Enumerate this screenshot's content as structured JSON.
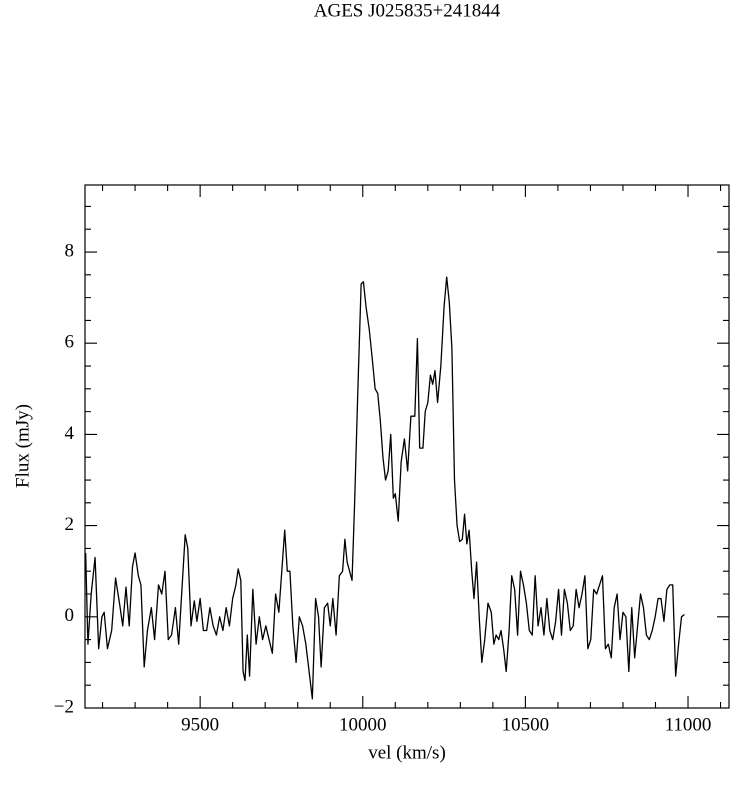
{
  "chart_data": {
    "type": "line",
    "title": "AGES J025835+241844",
    "xlabel": "vel (km/s)",
    "ylabel": "Flux (mJy)",
    "color": "#000000",
    "xlim": [
      9146,
      11126
    ],
    "ylim": [
      -2,
      9.47
    ],
    "xticks": [
      9500,
      10000,
      10500,
      11000
    ],
    "yticks": [
      {
        "value": -2,
        "label": "−2"
      },
      0,
      2,
      4,
      6,
      8
    ],
    "xminorticks": [
      9200,
      9300,
      9400,
      9600,
      9700,
      9800,
      9900,
      10100,
      10200,
      10300,
      10400,
      10600,
      10700,
      10800,
      10900,
      11100
    ],
    "yminorticks": [
      -1.5,
      -1,
      -0.5,
      0.5,
      1,
      1.5,
      2.5,
      3,
      3.5,
      4.5,
      5,
      5.5,
      6.5,
      7,
      7.5,
      8.5,
      9
    ],
    "x": [
      9148,
      9155,
      9165,
      9177,
      9188,
      9198,
      9205,
      9215,
      9228,
      9240,
      9252,
      9262,
      9272,
      9282,
      9292,
      9300,
      9310,
      9318,
      9328,
      9338,
      9350,
      9360,
      9372,
      9382,
      9392,
      9402,
      9412,
      9424,
      9434,
      9444,
      9454,
      9462,
      9472,
      9482,
      9490,
      9500,
      9510,
      9520,
      9530,
      9540,
      9550,
      9560,
      9570,
      9580,
      9590,
      9600,
      9610,
      9617,
      9625,
      9632,
      9638,
      9645,
      9652,
      9662,
      9672,
      9682,
      9692,
      9702,
      9712,
      9722,
      9732,
      9742,
      9752,
      9760,
      9768,
      9776,
      9785,
      9795,
      9805,
      9815,
      9825,
      9835,
      9845,
      9855,
      9864,
      9872,
      9882,
      9892,
      9900,
      9908,
      9918,
      9928,
      9938,
      9945,
      9952,
      9967,
      9975,
      9985,
      9995,
      10002,
      10010,
      10020,
      10030,
      10038,
      10046,
      10054,
      10062,
      10070,
      10078,
      10086,
      10094,
      10100,
      10109,
      10118,
      10128,
      10138,
      10148,
      10160,
      10168,
      10175,
      10185,
      10192,
      10200,
      10208,
      10215,
      10222,
      10230,
      10240,
      10250,
      10258,
      10266,
      10274,
      10282,
      10290,
      10298,
      10306,
      10313,
      10320,
      10327,
      10335,
      10342,
      10350,
      10358,
      10366,
      10375,
      10385,
      10395,
      10403,
      10410,
      10418,
      10425,
      10433,
      10441,
      10450,
      10458,
      10467,
      10476,
      10485,
      10494,
      10503,
      10512,
      10521,
      10530,
      10539,
      10548,
      10557,
      10566,
      10575,
      10584,
      10593,
      10602,
      10611,
      10620,
      10629,
      10638,
      10647,
      10656,
      10665,
      10674,
      10683,
      10692,
      10701,
      10710,
      10719,
      10728,
      10737,
      10746,
      10755,
      10764,
      10773,
      10782,
      10791,
      10800,
      10809,
      10818,
      10827,
      10836,
      10845,
      10854,
      10863,
      10872,
      10881,
      10890,
      10899,
      10908,
      10917,
      10926,
      10935,
      10944,
      10953,
      10962,
      10971,
      10980,
      10989
    ],
    "values": [
      1.4,
      -0.6,
      0.5,
      1.3,
      -0.7,
      0.0,
      0.1,
      -0.7,
      -0.3,
      0.85,
      0.3,
      -0.2,
      0.65,
      -0.2,
      1.1,
      1.4,
      0.9,
      0.7,
      -1.1,
      -0.3,
      0.2,
      -0.5,
      0.7,
      0.5,
      1.0,
      -0.5,
      -0.4,
      0.2,
      -0.6,
      0.6,
      1.8,
      1.5,
      -0.2,
      0.35,
      -0.1,
      0.4,
      -0.3,
      -0.3,
      0.2,
      -0.2,
      -0.4,
      0.0,
      -0.3,
      0.2,
      -0.2,
      0.4,
      0.7,
      1.05,
      0.8,
      -1.2,
      -1.4,
      -0.4,
      -1.3,
      0.6,
      -0.6,
      0.0,
      -0.5,
      -0.2,
      -0.5,
      -0.8,
      0.5,
      0.1,
      1.1,
      1.9,
      1.0,
      1.0,
      -0.2,
      -1.0,
      0.0,
      -0.2,
      -0.6,
      -1.2,
      -1.8,
      0.4,
      0.0,
      -1.1,
      0.2,
      0.3,
      -0.2,
      0.4,
      -0.4,
      0.9,
      1.0,
      1.7,
      1.2,
      0.8,
      2.5,
      5.0,
      7.3,
      7.35,
      6.8,
      6.3,
      5.6,
      5.0,
      4.9,
      4.3,
      3.5,
      3.0,
      3.2,
      4.0,
      2.6,
      2.7,
      2.1,
      3.4,
      3.9,
      3.2,
      4.4,
      4.4,
      6.1,
      3.7,
      3.7,
      4.5,
      4.7,
      5.3,
      5.1,
      5.4,
      4.7,
      5.5,
      6.8,
      7.45,
      6.9,
      5.9,
      3.0,
      2.0,
      1.65,
      1.7,
      2.25,
      1.6,
      1.9,
      1.0,
      0.4,
      1.2,
      0.0,
      -1.0,
      -0.5,
      0.3,
      0.1,
      -0.6,
      -0.4,
      -0.5,
      -0.3,
      -0.7,
      -1.2,
      -0.3,
      0.9,
      0.6,
      -0.4,
      1.0,
      0.7,
      0.3,
      -0.3,
      -0.4,
      0.9,
      -0.2,
      0.2,
      -0.4,
      0.4,
      -0.3,
      -0.5,
      -0.1,
      0.6,
      -0.4,
      0.6,
      0.3,
      -0.3,
      -0.2,
      0.6,
      0.2,
      0.5,
      0.9,
      -0.7,
      -0.5,
      0.6,
      0.5,
      0.7,
      0.9,
      -0.7,
      -0.6,
      -0.9,
      0.2,
      0.5,
      -0.5,
      0.1,
      0.0,
      -1.2,
      0.2,
      -0.9,
      -0.2,
      0.5,
      0.2,
      -0.4,
      -0.5,
      -0.3,
      0.0,
      0.4,
      0.4,
      -0.1,
      0.6,
      0.7,
      0.7,
      -1.3,
      -0.6,
      0.0,
      0.05
    ]
  }
}
